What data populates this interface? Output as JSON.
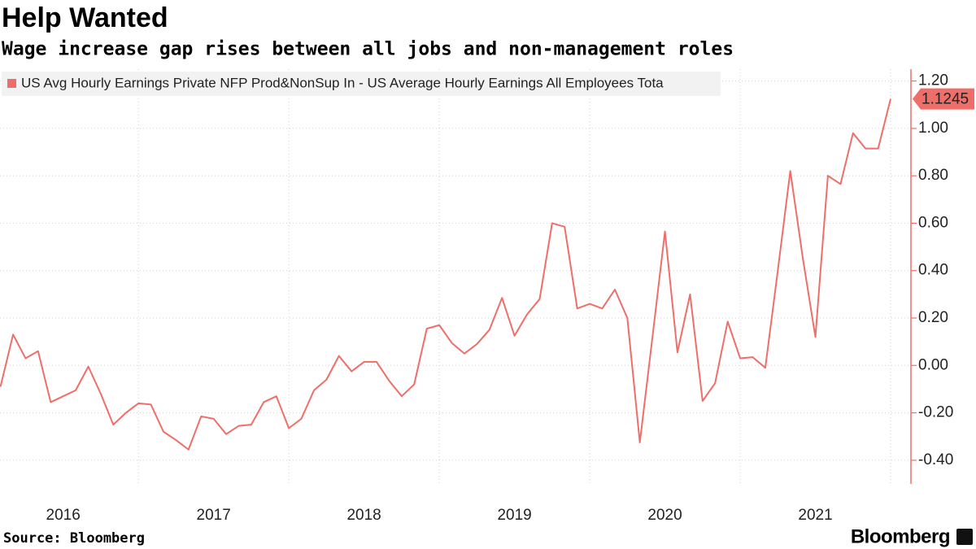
{
  "chart_data": {
    "type": "line",
    "title": "Help Wanted",
    "subtitle": "Wage increase gap rises between all jobs and non-management roles",
    "source": "Source: Bloomberg",
    "brand": "Bloomberg",
    "x": [
      2016.083,
      2016.167,
      2016.25,
      2016.333,
      2016.417,
      2016.5,
      2016.583,
      2016.667,
      2016.75,
      2016.833,
      2016.917,
      2017.0,
      2017.083,
      2017.167,
      2017.25,
      2017.333,
      2017.417,
      2017.5,
      2017.583,
      2017.667,
      2017.75,
      2017.833,
      2017.917,
      2018.0,
      2018.083,
      2018.167,
      2018.25,
      2018.333,
      2018.417,
      2018.5,
      2018.583,
      2018.667,
      2018.75,
      2018.833,
      2018.917,
      2019.0,
      2019.083,
      2019.167,
      2019.25,
      2019.333,
      2019.417,
      2019.5,
      2019.583,
      2019.667,
      2019.75,
      2019.833,
      2019.917,
      2020.0,
      2020.083,
      2020.167,
      2020.25,
      2020.333,
      2020.417,
      2020.5,
      2020.583,
      2020.667,
      2020.75,
      2020.833,
      2020.917,
      2021.0,
      2021.083,
      2021.167,
      2021.25,
      2021.333,
      2021.417,
      2021.5,
      2021.583,
      2021.667,
      2021.75,
      2021.833,
      2021.917,
      2022.0
    ],
    "series": [
      {
        "name": "US Avg Hourly Earnings Private NFP Prod&NonSup In - US Average Hourly Earnings All Employees Tota",
        "color": "#ee6f6a",
        "values": [
          -0.09,
          0.13,
          0.03,
          0.06,
          -0.155,
          -0.13,
          -0.105,
          -0.005,
          -0.12,
          -0.25,
          -0.2,
          -0.16,
          -0.165,
          -0.28,
          -0.315,
          -0.355,
          -0.215,
          -0.225,
          -0.29,
          -0.255,
          -0.25,
          -0.155,
          -0.13,
          -0.265,
          -0.225,
          -0.105,
          -0.06,
          0.04,
          -0.025,
          0.015,
          0.015,
          -0.065,
          -0.13,
          -0.08,
          0.155,
          0.17,
          0.095,
          0.05,
          0.09,
          0.15,
          0.285,
          0.125,
          0.215,
          0.28,
          0.6,
          0.585,
          0.24,
          0.26,
          0.24,
          0.32,
          0.2,
          -0.325,
          0.12,
          0.565,
          0.055,
          0.3,
          -0.15,
          -0.075,
          0.185,
          0.03,
          0.035,
          -0.01,
          0.4,
          0.82,
          0.45,
          0.12,
          0.8,
          0.765,
          0.98,
          0.915,
          0.915,
          1.1245
        ]
      }
    ],
    "xlim": [
      2016.08,
      2022.135
    ],
    "xticks": [
      {
        "value": 2016.5,
        "label": "2016"
      },
      {
        "value": 2017.5,
        "label": "2017"
      },
      {
        "value": 2018.5,
        "label": "2018"
      },
      {
        "value": 2019.5,
        "label": "2019"
      },
      {
        "value": 2020.5,
        "label": "2020"
      },
      {
        "value": 2021.5,
        "label": "2021"
      }
    ],
    "ylim": [
      -0.5,
      1.25
    ],
    "yticks": [
      {
        "value": 1.2,
        "label": "1.20"
      },
      {
        "value": 1.0,
        "label": "1.00"
      },
      {
        "value": 0.8,
        "label": "0.80"
      },
      {
        "value": 0.6,
        "label": "0.60"
      },
      {
        "value": 0.4,
        "label": "0.40"
      },
      {
        "value": 0.2,
        "label": "0.20"
      },
      {
        "value": 0.0,
        "label": "0.00"
      },
      {
        "value": -0.2,
        "label": "-0.20"
      },
      {
        "value": -0.4,
        "label": "-0.40"
      }
    ],
    "grid": true,
    "y_axis_side": "right",
    "legend": "top-left"
  }
}
